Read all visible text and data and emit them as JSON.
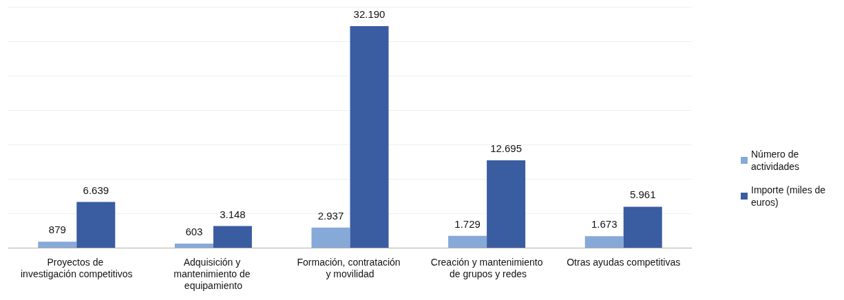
{
  "chart_data": {
    "type": "bar",
    "categories": [
      "Proyectos de investigación competitivos",
      "Adquisición y mantenimiento de equipamiento",
      "Formación, contratación y movilidad",
      "Creación y mantenimiento de grupos y redes",
      "Otras ayudas competitivas"
    ],
    "series": [
      {
        "name": "Número de actividades",
        "color": "#86a9d8",
        "values": [
          879,
          603,
          2937,
          1729,
          1673
        ],
        "value_labels": [
          "879",
          "603",
          "2.937",
          "1.729",
          "1.673"
        ]
      },
      {
        "name": "Importe (miles de euros)",
        "color": "#3a5ca0",
        "values": [
          6639,
          3148,
          32190,
          12695,
          5961
        ],
        "value_labels": [
          "6.639",
          "3.148",
          "32.190",
          "12.695",
          "5.961"
        ]
      }
    ],
    "ylim": [
      0,
      35000
    ],
    "yticks": [
      {
        "value": 0,
        "label": null
      },
      {
        "value": 5000,
        "label": null
      },
      {
        "value": 10000,
        "label": null
      },
      {
        "value": 15000,
        "label": null
      },
      {
        "value": 20000,
        "label": null
      },
      {
        "value": 25000,
        "label": null
      },
      {
        "value": 30000,
        "label": null
      },
      {
        "value": 35000,
        "label": null
      }
    ],
    "grid": "y",
    "tick_labels": "x",
    "legend": "right"
  }
}
